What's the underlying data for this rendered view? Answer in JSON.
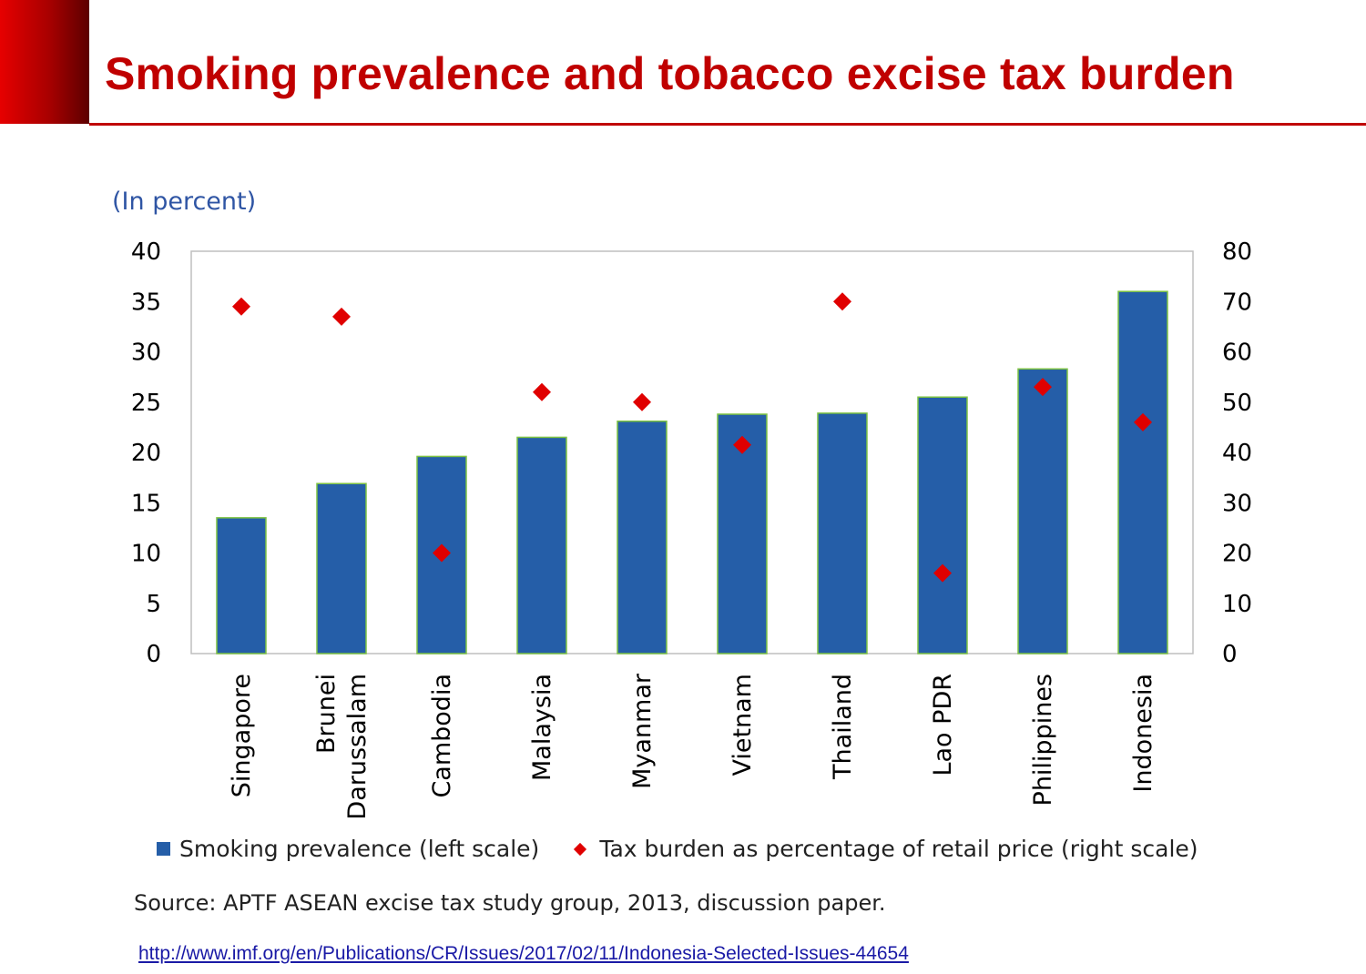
{
  "slide": {
    "title": "Smoking prevalence and tobacco excise tax burden",
    "source": "Source: APTF ASEAN excise tax study group, 2013, discussion paper.",
    "link": "http://www.imf.org/en/Publications/CR/Issues/2017/02/11/Indonesia-Selected-Issues-44654"
  },
  "colors": {
    "title": "#c00000",
    "bar": "#255ea8",
    "bar_outline": "#7dc242",
    "marker": "#e00000",
    "unit_label": "#2f55a4"
  },
  "chart_data": {
    "type": "bar",
    "unit_label": "(In percent)",
    "categories": [
      [
        "Singapore"
      ],
      [
        "Brunei",
        "Darussalam"
      ],
      [
        "Cambodia"
      ],
      [
        "Malaysia"
      ],
      [
        "Myanmar"
      ],
      [
        "Vietnam"
      ],
      [
        "Thailand"
      ],
      [
        "Lao PDR"
      ],
      [
        "Philippines"
      ],
      [
        "Indonesia"
      ]
    ],
    "series": [
      {
        "name": "Smoking prevalence (left scale)",
        "type": "bar",
        "axis": "left",
        "values": [
          13.5,
          16.9,
          19.6,
          21.5,
          23.1,
          23.8,
          23.9,
          25.5,
          28.3,
          36.0
        ]
      },
      {
        "name": "Tax burden as percentage of retail price (right scale)",
        "type": "scatter",
        "axis": "right",
        "values": [
          69,
          67,
          20,
          52,
          50,
          41.5,
          70,
          16,
          53,
          46
        ]
      }
    ],
    "y_left": {
      "min": 0,
      "max": 40,
      "ticks": [
        "0",
        "5",
        "10",
        "15",
        "20",
        "25",
        "30",
        "35",
        "40"
      ]
    },
    "y_right": {
      "min": 0,
      "max": 80,
      "ticks": [
        "0",
        "10",
        "20",
        "30",
        "40",
        "50",
        "60",
        "70",
        "80"
      ]
    },
    "grid": false,
    "legend_position": "bottom"
  }
}
